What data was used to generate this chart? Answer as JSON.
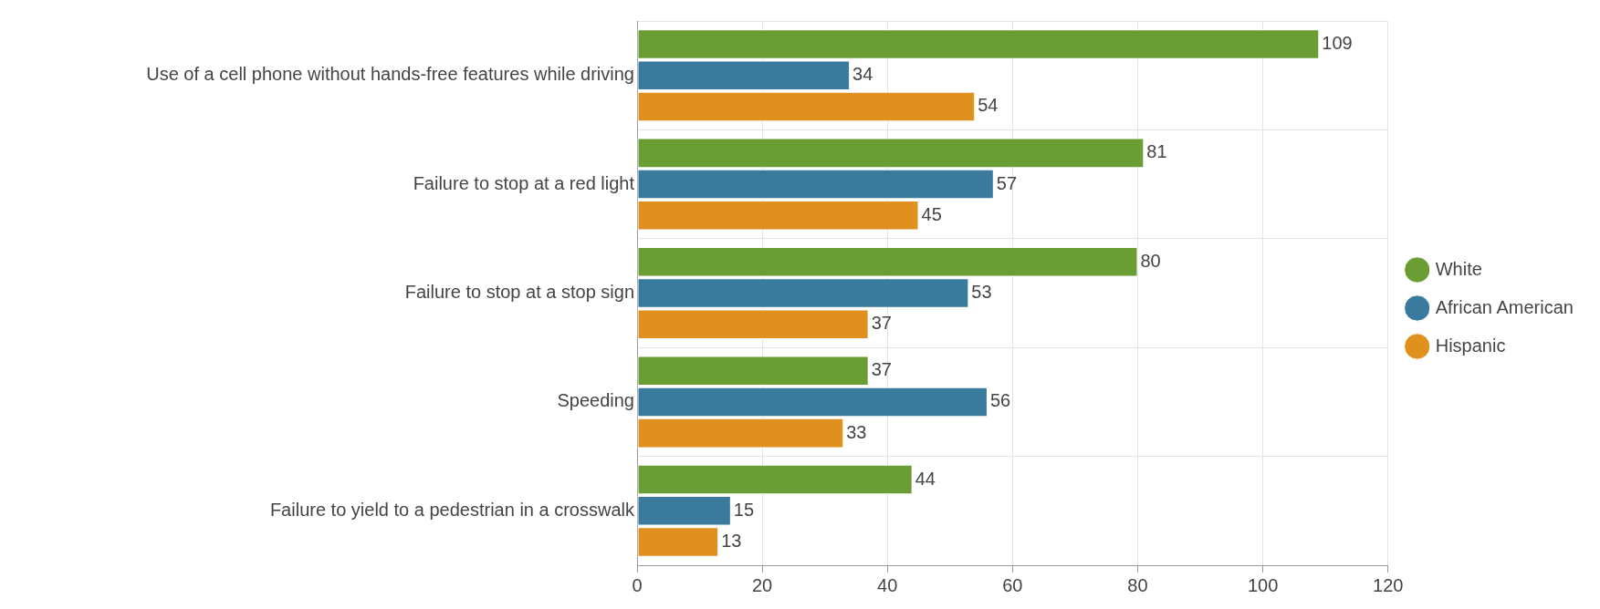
{
  "chart_data": {
    "type": "bar",
    "orientation": "horizontal",
    "categories": [
      "Use of a cell phone without hands-free features while driving",
      "Failure to stop at a red light",
      "Failure to stop at a stop sign",
      "Speeding",
      "Failure to yield to a pedestrian in a crosswalk"
    ],
    "series": [
      {
        "name": "White",
        "color": "#6a9e34",
        "values": [
          109,
          81,
          80,
          37,
          44
        ]
      },
      {
        "name": "African American",
        "color": "#3a7a9c",
        "values": [
          34,
          57,
          53,
          56,
          15
        ]
      },
      {
        "name": "Hispanic",
        "color": "#e0901e",
        "values": [
          54,
          45,
          37,
          33,
          13
        ]
      }
    ],
    "xlim": [
      0,
      120
    ],
    "xticks": [
      0,
      20,
      40,
      60,
      80,
      100,
      120
    ],
    "grid": true,
    "legend": "right",
    "data_labels": true
  }
}
